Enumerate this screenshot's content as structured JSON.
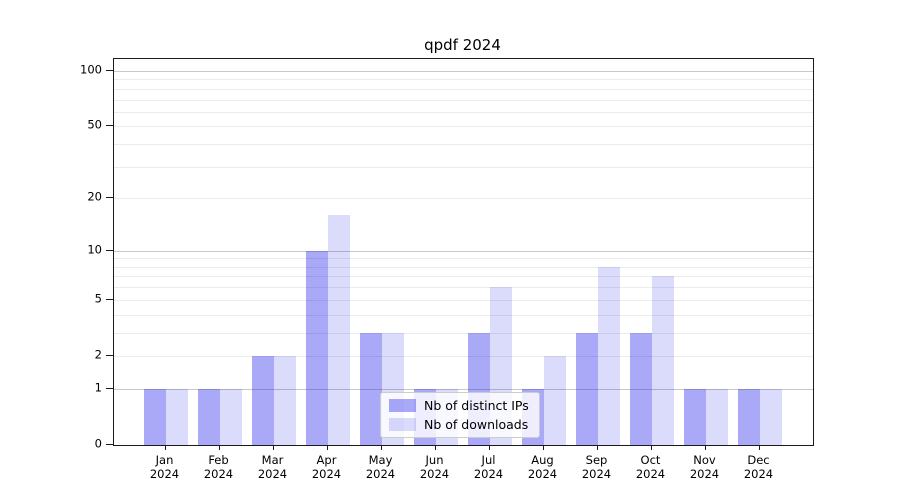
{
  "title": "qpdf 2024",
  "chart_data": {
    "type": "bar",
    "title": "qpdf 2024",
    "categories": [
      "Jan",
      "Feb",
      "Mar",
      "Apr",
      "May",
      "Jun",
      "Jul",
      "Aug",
      "Sep",
      "Oct",
      "Nov",
      "Dec"
    ],
    "x_tick_second_line": "2024",
    "series": [
      {
        "name": "Nb of distinct IPs",
        "color": "rgba(30,30,235,0.38)",
        "color_hex_on_white": "#a8a8f6",
        "values": [
          1,
          1,
          2,
          10,
          3,
          1,
          3,
          1,
          3,
          3,
          1,
          1
        ]
      },
      {
        "name": "Nb of downloads",
        "color": "rgba(30,30,235,0.16)",
        "color_hex_on_white": "#d8d8f8",
        "values": [
          1,
          1,
          2,
          16,
          3,
          1,
          6,
          2,
          8,
          7,
          1,
          1
        ]
      }
    ],
    "yscale": "log1p",
    "ylim": [
      0,
      116
    ],
    "y_tick_values": [
      0,
      1,
      2,
      5,
      10,
      20,
      50,
      100
    ],
    "y_tick_labels": [
      "0",
      "1",
      "2",
      "5",
      "10",
      "20",
      "50",
      "100"
    ],
    "y_major_gridlines": [
      1,
      10,
      100
    ],
    "y_minor_gridlines": [
      2,
      3,
      4,
      5,
      6,
      7,
      8,
      9,
      20,
      30,
      40,
      50,
      60,
      70,
      80,
      90
    ],
    "grid": true,
    "legend_position": "lower center",
    "xlabel": "",
    "ylabel": ""
  }
}
